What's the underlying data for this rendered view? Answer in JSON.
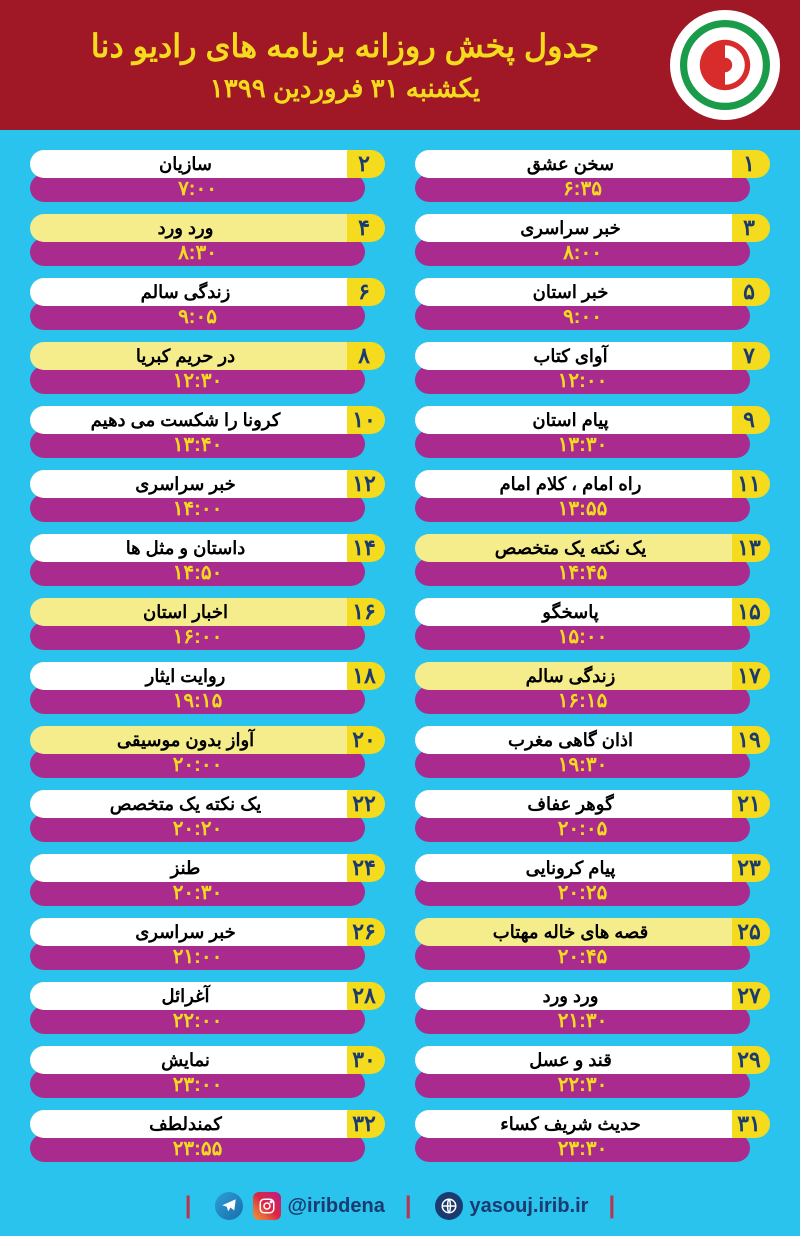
{
  "header": {
    "title": "جدول پخش روزانه برنامه های رادیو دنا",
    "subtitle": "یکشنبه ۳۱ فروردین ۱۳۹۹",
    "bg_color": "#a01825",
    "text_color": "#f4db1e"
  },
  "colors": {
    "page_bg": "#29c3ee",
    "badge_bg": "#f4db1e",
    "badge_text": "#1a3b6f",
    "time_bg": "#a82b8d",
    "time_text": "#f4db1e",
    "pill_white": "#ffffff",
    "pill_yellow": "#f5ed8c"
  },
  "schedule": [
    {
      "num": "۱",
      "name": "سخن عشق",
      "time": "۶:۳۵",
      "alt": false
    },
    {
      "num": "۲",
      "name": "سازیان",
      "time": "۷:۰۰",
      "alt": false
    },
    {
      "num": "۳",
      "name": "خبر سراسری",
      "time": "۸:۰۰",
      "alt": false
    },
    {
      "num": "۴",
      "name": "ورد ورد",
      "time": "۸:۳۰",
      "alt": true
    },
    {
      "num": "۵",
      "name": "خبر استان",
      "time": "۹:۰۰",
      "alt": false
    },
    {
      "num": "۶",
      "name": "زندگی سالم",
      "time": "۹:۰۵",
      "alt": false
    },
    {
      "num": "۷",
      "name": "آوای کتاب",
      "time": "۱۲:۰۰",
      "alt": false
    },
    {
      "num": "۸",
      "name": "در حریم کبریا",
      "time": "۱۲:۳۰",
      "alt": true
    },
    {
      "num": "۹",
      "name": "پیام استان",
      "time": "۱۳:۳۰",
      "alt": false
    },
    {
      "num": "۱۰",
      "name": "کرونا را شکست می دهیم",
      "time": "۱۳:۴۰",
      "alt": false
    },
    {
      "num": "۱۱",
      "name": "راه امام ، کلام امام",
      "time": "۱۳:۵۵",
      "alt": false
    },
    {
      "num": "۱۲",
      "name": "خبر سراسری",
      "time": "۱۴:۰۰",
      "alt": false
    },
    {
      "num": "۱۳",
      "name": "یک نکته یک متخصص",
      "time": "۱۴:۴۵",
      "alt": true
    },
    {
      "num": "۱۴",
      "name": "داستان و مثل ها",
      "time": "۱۴:۵۰",
      "alt": false
    },
    {
      "num": "۱۵",
      "name": "پاسخگو",
      "time": "۱۵:۰۰",
      "alt": false
    },
    {
      "num": "۱۶",
      "name": "اخبار استان",
      "time": "۱۶:۰۰",
      "alt": true
    },
    {
      "num": "۱۷",
      "name": "زندگی سالم",
      "time": "۱۶:۱۵",
      "alt": true
    },
    {
      "num": "۱۸",
      "name": "روایت ایثار",
      "time": "۱۹:۱۵",
      "alt": false
    },
    {
      "num": "۱۹",
      "name": "اذان گاهی مغرب",
      "time": "۱۹:۳۰",
      "alt": false
    },
    {
      "num": "۲۰",
      "name": "آواز بدون موسیقی",
      "time": "۲۰:۰۰",
      "alt": true
    },
    {
      "num": "۲۱",
      "name": "گوهر عفاف",
      "time": "۲۰:۰۵",
      "alt": false
    },
    {
      "num": "۲۲",
      "name": "یک نکته یک متخصص",
      "time": "۲۰:۲۰",
      "alt": false
    },
    {
      "num": "۲۳",
      "name": "پیام کرونایی",
      "time": "۲۰:۲۵",
      "alt": false
    },
    {
      "num": "۲۴",
      "name": "طنز",
      "time": "۲۰:۳۰",
      "alt": false
    },
    {
      "num": "۲۵",
      "name": "قصه های خاله مهتاب",
      "time": "۲۰:۴۵",
      "alt": true
    },
    {
      "num": "۲۶",
      "name": "خبر سراسری",
      "time": "۲۱:۰۰",
      "alt": false
    },
    {
      "num": "۲۷",
      "name": "ورد ورد",
      "time": "۲۱:۳۰",
      "alt": false
    },
    {
      "num": "۲۸",
      "name": "آغرائل",
      "time": "۲۲:۰۰",
      "alt": false
    },
    {
      "num": "۲۹",
      "name": "قند و عسل",
      "time": "۲۲:۳۰",
      "alt": false
    },
    {
      "num": "۳۰",
      "name": "نمایش",
      "time": "۲۳:۰۰",
      "alt": false
    },
    {
      "num": "۳۱",
      "name": "حدیث شریف کساء",
      "time": "۲۳:۳۰",
      "alt": false
    },
    {
      "num": "۳۲",
      "name": "کمندلطف",
      "time": "۲۳:۵۵",
      "alt": false
    }
  ],
  "footer": {
    "handle": "@iribdena",
    "website": "yasouj.irib.ir",
    "divider": "|"
  }
}
